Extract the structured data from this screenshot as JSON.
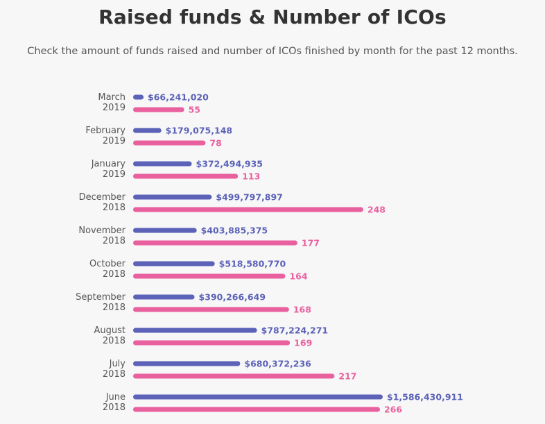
{
  "chart_data": {
    "type": "bar",
    "orientation": "horizontal",
    "title": "Raised funds & Number of ICOs",
    "subtitle": "Check the amount of funds raised and number of ICOs finished by month for the past 12 months.",
    "categories": [
      [
        "March",
        "2019"
      ],
      [
        "February",
        "2019"
      ],
      [
        "January",
        "2019"
      ],
      [
        "December",
        "2018"
      ],
      [
        "November",
        "2018"
      ],
      [
        "October",
        "2018"
      ],
      [
        "September",
        "2018"
      ],
      [
        "August",
        "2018"
      ],
      [
        "July",
        "2018"
      ],
      [
        "June",
        "2018"
      ]
    ],
    "series": [
      {
        "key": "funds",
        "color": "#5b62b8",
        "values": [
          66241020,
          179075148,
          372494935,
          499797897,
          403885375,
          518580770,
          390266649,
          787224271,
          680372236,
          1586430911
        ],
        "labels": [
          "$66,241,020",
          "$179,075,148",
          "$372,494,935",
          "$499,797,897",
          "$403,885,375",
          "$518,580,770",
          "$390,266,649",
          "$787,224,271",
          "$680,372,236",
          "$1,586,430,911"
        ]
      },
      {
        "key": "icos",
        "color": "#e9609f",
        "values": [
          55,
          78,
          113,
          248,
          177,
          164,
          168,
          169,
          217,
          266
        ],
        "labels": [
          "55",
          "78",
          "113",
          "248",
          "177",
          "164",
          "168",
          "169",
          "217",
          "266"
        ]
      }
    ],
    "legend": "none",
    "grid": false
  }
}
